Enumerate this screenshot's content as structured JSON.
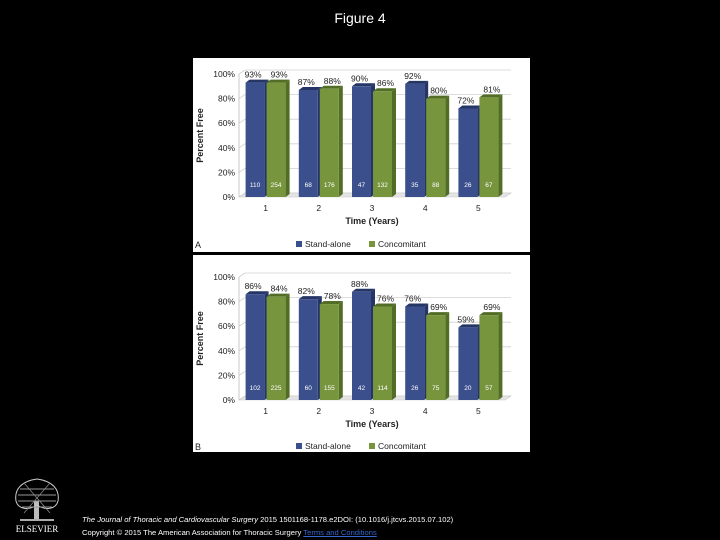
{
  "figure_title": "Figure 4",
  "footer": {
    "journal": "The Journal of Thoracic and Cardiovascular Surgery",
    "citation_rest": " 2015 1501168-1178.e2DOI: (10.1016/j.jtcvs.2015.07.102)",
    "copyright": "Copyright © 2015 The American Association for Thoracic Surgery ",
    "terms_link": "Terms and Conditions",
    "publisher": "ELSEVIER"
  },
  "colors": {
    "standalone": "#3a4f8c",
    "standalone_side": "#243566",
    "concomitant": "#77953d",
    "concomitant_side": "#526d26"
  },
  "chart_data": [
    {
      "type": "bar",
      "panel_label": "A",
      "title": "",
      "xlabel": "Time (Years)",
      "ylabel": "Percent Free",
      "ylim": [
        0,
        100
      ],
      "yticks": [
        "0%",
        "20%",
        "40%",
        "60%",
        "80%",
        "100%"
      ],
      "categories": [
        "1",
        "2",
        "3",
        "4",
        "5"
      ],
      "series": [
        {
          "name": "Stand-alone",
          "values": [
            93,
            87,
            90,
            92,
            72
          ],
          "labels": [
            "93%",
            "87%",
            "90%",
            "92%",
            "72%"
          ],
          "n_at_risk": [
            "110",
            "68",
            "47",
            "35",
            "26"
          ]
        },
        {
          "name": "Concomitant",
          "values": [
            93,
            88,
            86,
            80,
            81
          ],
          "labels": [
            "93%",
            "88%",
            "86%",
            "80%",
            "81%"
          ],
          "n_at_risk": [
            "254",
            "176",
            "132",
            "88",
            "67"
          ]
        }
      ]
    },
    {
      "type": "bar",
      "panel_label": "B",
      "title": "",
      "xlabel": "Time (Years)",
      "ylabel": "Percent Free",
      "ylim": [
        0,
        100
      ],
      "yticks": [
        "0%",
        "20%",
        "40%",
        "60%",
        "80%",
        "100%"
      ],
      "categories": [
        "1",
        "2",
        "3",
        "4",
        "5"
      ],
      "series": [
        {
          "name": "Stand-alone",
          "values": [
            86,
            82,
            88,
            76,
            59
          ],
          "labels": [
            "86%",
            "82%",
            "88%",
            "76%",
            "59%"
          ],
          "n_at_risk": [
            "102",
            "60",
            "42",
            "26",
            "20"
          ]
        },
        {
          "name": "Concomitant",
          "values": [
            84,
            78,
            76,
            69,
            69
          ],
          "labels": [
            "84%",
            "78%",
            "76%",
            "69%",
            "69%"
          ],
          "n_at_risk": [
            "225",
            "155",
            "114",
            "75",
            "57"
          ]
        }
      ]
    }
  ]
}
